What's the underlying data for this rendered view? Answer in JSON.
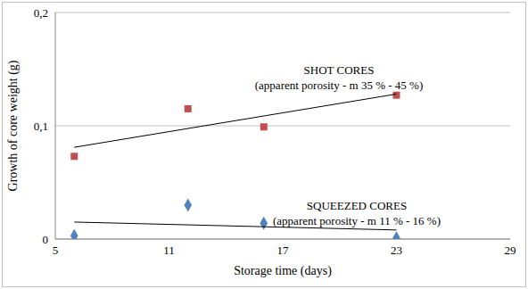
{
  "chart_data": {
    "type": "scatter",
    "x_label": "Storage time (days)",
    "y_label": "Growth of core weight (g)",
    "xlim": [
      5,
      29
    ],
    "xticks": [
      5,
      11,
      17,
      23,
      29
    ],
    "ylim": [
      0,
      0.2
    ],
    "yticks": [
      0,
      {
        "value": 0.1,
        "label": "0,1"
      },
      {
        "value": 0.2,
        "label": "0,2"
      }
    ],
    "grid": "y",
    "series": [
      {
        "name": "SHOT CORES",
        "note": "(apparent porosity - m 35 % - 45 %)",
        "color": "#c0504d",
        "marker": "square",
        "x": [
          6,
          12,
          16,
          23
        ],
        "values": [
          0.073,
          0.115,
          0.099,
          0.127
        ],
        "trendline": {
          "x": [
            6,
            23
          ],
          "values": [
            0.081,
            0.128
          ]
        }
      },
      {
        "name": "SQUEEZED CORES",
        "note": "(apparent porosity - m 11 % - 16 %)",
        "color": "#4f81bd",
        "marker": "diamond",
        "x": [
          6,
          12,
          16,
          23
        ],
        "values": [
          0.003,
          0.03,
          0.014,
          0.001
        ],
        "trendline": {
          "x": [
            6,
            23
          ],
          "values": [
            0.015,
            0.008
          ]
        }
      }
    ]
  }
}
